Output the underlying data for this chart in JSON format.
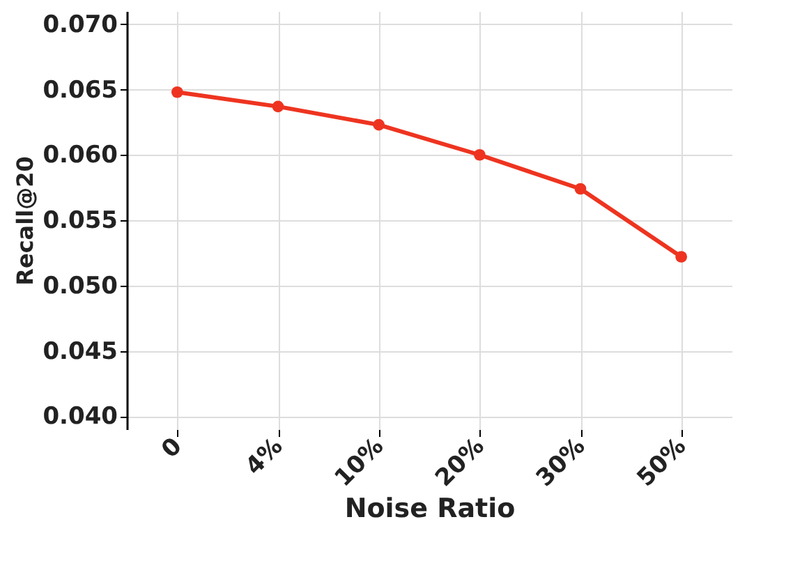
{
  "chart_data": {
    "type": "line",
    "xlabel": "Noise Ratio",
    "ylabel": "Recall@20",
    "categories": [
      "0",
      "4%",
      "10%",
      "20%",
      "30%",
      "50%"
    ],
    "series": [
      {
        "color": "#ee3420",
        "values": [
          0.0648,
          0.0637,
          0.0623,
          0.06,
          0.0574,
          0.0522
        ]
      }
    ],
    "ylim": [
      0.039,
      0.071
    ],
    "yticks": [
      {
        "value": 0.04,
        "label": "0.040"
      },
      {
        "value": 0.045,
        "label": "0.045"
      },
      {
        "value": 0.05,
        "label": "0.050"
      },
      {
        "value": 0.055,
        "label": "0.055"
      },
      {
        "value": 0.06,
        "label": "0.060"
      },
      {
        "value": 0.065,
        "label": "0.065"
      },
      {
        "value": 0.07,
        "label": "0.070"
      }
    ],
    "grid": true,
    "marker": "circle",
    "line_style": "solid",
    "legend": false
  }
}
